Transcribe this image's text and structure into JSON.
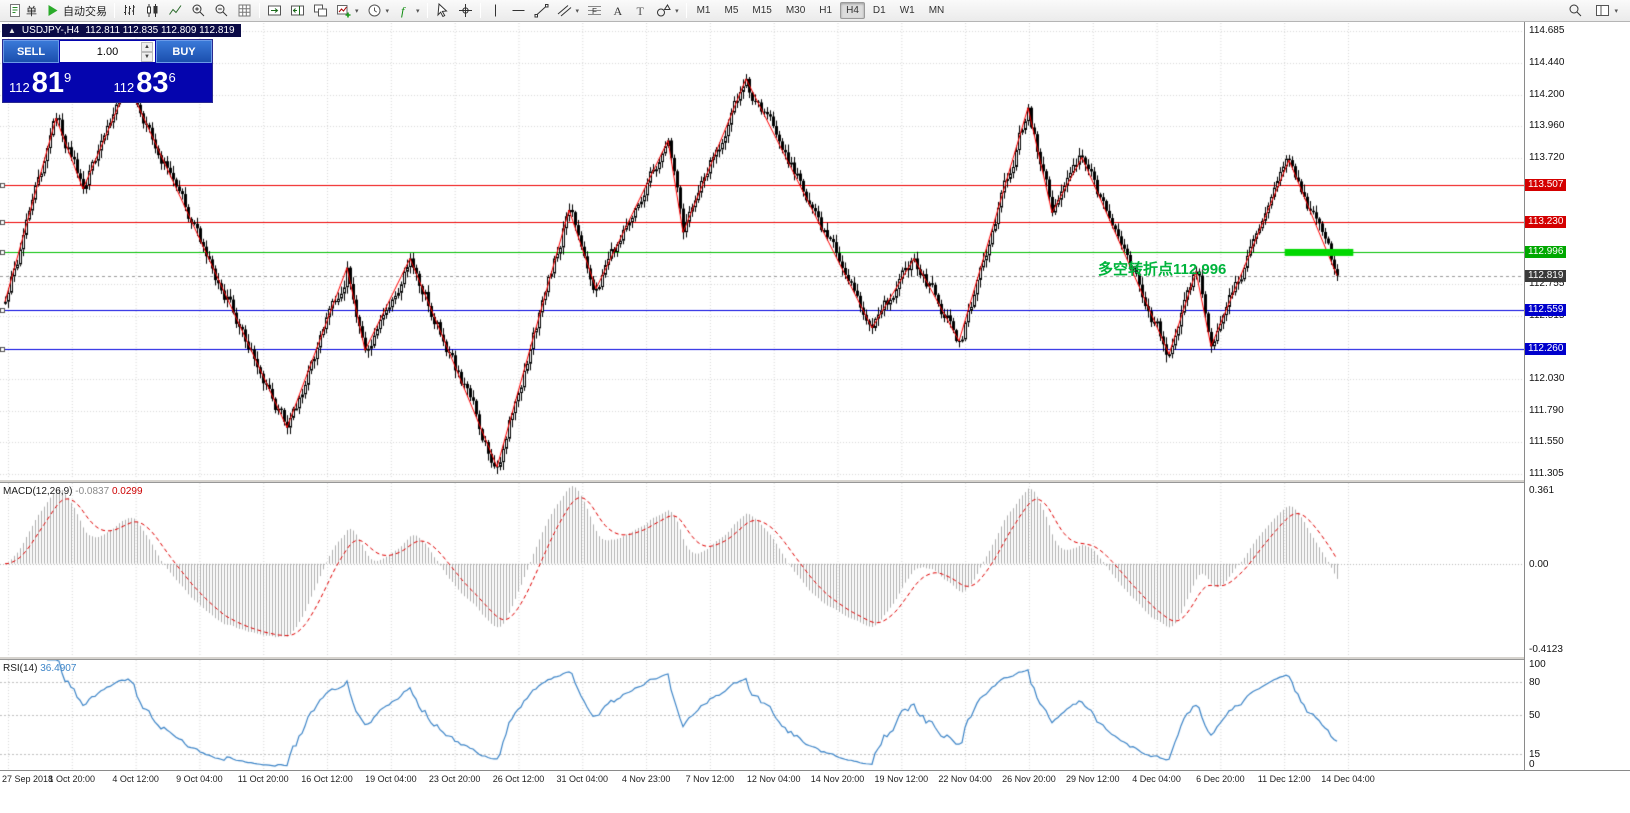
{
  "toolbar": {
    "order_label": "单",
    "autotrade_label": "自动交易",
    "timeframes": [
      "M1",
      "M5",
      "M15",
      "M30",
      "H1",
      "H4",
      "D1",
      "W1",
      "MN"
    ],
    "active_timeframe": "H4"
  },
  "chart_header": {
    "symbol": "USDJPY-,H4",
    "ohlc": "112.811 112.835 112.809 112.819"
  },
  "one_click": {
    "sell_label": "SELL",
    "buy_label": "BUY",
    "lot": "1.00",
    "sell_small": "112",
    "sell_big": "81",
    "sell_sup": "9",
    "buy_small": "112",
    "buy_big": "83",
    "buy_sup": "6"
  },
  "annotation": {
    "text": "多空转折点112.996",
    "color": "#00b43c"
  },
  "chart_data": {
    "type": "candlestick",
    "symbol": "USDJPY",
    "timeframe": "H4",
    "price_axis": {
      "max": 114.746,
      "min": 111.268,
      "plain_ticks": [
        114.685,
        114.44,
        114.2,
        113.96,
        113.72,
        112.755,
        112.515,
        112.03,
        111.79,
        111.55,
        111.305
      ]
    },
    "zigzag_pivots": [
      [
        0,
        112.62
      ],
      [
        17,
        114.02
      ],
      [
        26,
        113.48
      ],
      [
        41,
        114.28
      ],
      [
        94,
        111.66
      ],
      [
        114,
        112.88
      ],
      [
        120,
        112.25
      ],
      [
        135,
        112.95
      ],
      [
        164,
        111.36
      ],
      [
        188,
        113.32
      ],
      [
        197,
        112.72
      ],
      [
        221,
        113.85
      ],
      [
        226,
        113.15
      ],
      [
        247,
        114.32
      ],
      [
        289,
        112.42
      ],
      [
        303,
        112.95
      ],
      [
        318,
        112.32
      ],
      [
        341,
        114.1
      ],
      [
        349,
        113.3
      ],
      [
        359,
        113.72
      ],
      [
        388,
        112.22
      ],
      [
        397,
        112.85
      ],
      [
        402,
        112.28
      ],
      [
        428,
        113.7
      ],
      [
        444,
        112.819
      ]
    ],
    "hlines": [
      {
        "price": 113.507,
        "color": "#ee0000",
        "tag_bg": "#d40000"
      },
      {
        "price": 113.23,
        "color": "#ee0000",
        "tag_bg": "#d40000"
      },
      {
        "price": 112.996,
        "color": "#00c000",
        "tag_bg": "#00a800"
      },
      {
        "price": 112.559,
        "color": "#0000e0",
        "tag_bg": "#0000cc"
      },
      {
        "price": 112.26,
        "color": "#0000e0",
        "tag_bg": "#0000cc"
      }
    ],
    "current_price": {
      "price": 112.819,
      "tag_bg": "#3a3a3a"
    },
    "green_segment": {
      "price": 112.996,
      "x_start_frac": 0.843,
      "x_end_frac": 0.888,
      "thickness": 7,
      "color": "#00d800"
    },
    "macd": {
      "label": "MACD(12,26,9)",
      "value1": "-0.0837",
      "value2": "0.0299",
      "axis_max": 0.361,
      "axis_min": -0.4123,
      "axis_labels": [
        "0.361",
        "0.00",
        "-0.4123"
      ],
      "histogram_color": "#b0b0b0",
      "signal_color": "#e00000"
    },
    "rsi": {
      "label": "RSI(14)",
      "value": "36.4907",
      "levels": [
        80,
        50,
        15
      ],
      "axis_labels": [
        "100",
        "80",
        "50",
        "15",
        "0"
      ],
      "line_color": "#3d85c8"
    },
    "time_labels": [
      "27 Sep 2018",
      "1 Oct 20:00",
      "4 Oct 12:00",
      "9 Oct 04:00",
      "11 Oct 20:00",
      "16 Oct 12:00",
      "19 Oct 04:00",
      "23 Oct 20:00",
      "26 Oct 12:00",
      "31 Oct 04:00",
      "4 Nov 23:00",
      "7 Nov 12:00",
      "12 Nov 04:00",
      "14 Nov 20:00",
      "19 Nov 12:00",
      "22 Nov 04:00",
      "26 Nov 20:00",
      "29 Nov 12:00",
      "4 Dec 04:00",
      "6 Dec 20:00",
      "11 Dec 12:00",
      "14 Dec 04:00"
    ]
  }
}
